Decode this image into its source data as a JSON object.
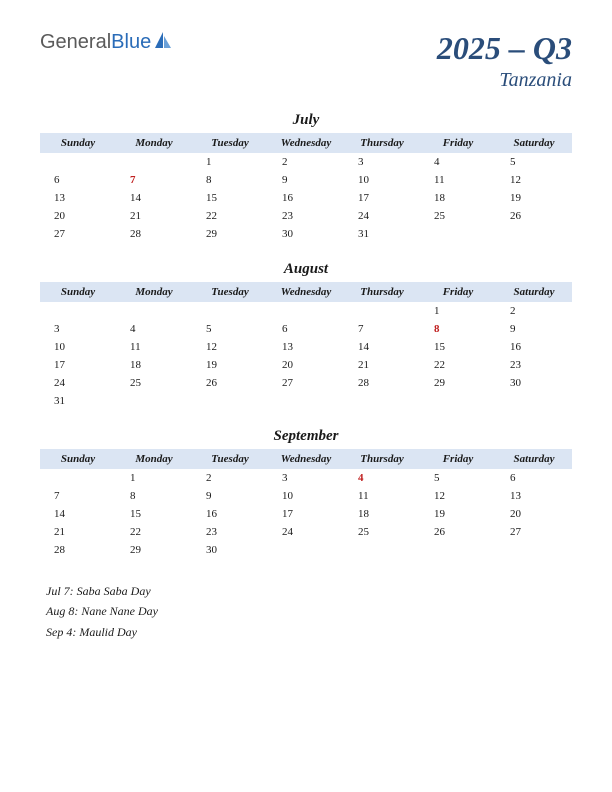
{
  "logo": {
    "part1": "General",
    "part2": "Blue"
  },
  "header": {
    "quarter": "2025 – Q3",
    "country": "Tanzania"
  },
  "colors": {
    "header_band": "#dbe5f3",
    "title_color": "#2a4d7a",
    "holiday_color": "#c02020",
    "logo_gray": "#5a5a5a",
    "logo_blue": "#2a6cb8",
    "background": "#ffffff"
  },
  "day_headers": [
    "Sunday",
    "Monday",
    "Tuesday",
    "Wednesday",
    "Thursday",
    "Friday",
    "Saturday"
  ],
  "months": [
    {
      "name": "July",
      "weeks": [
        [
          "",
          "",
          "1",
          "2",
          "3",
          "4",
          "5"
        ],
        [
          "6",
          "7",
          "8",
          "9",
          "10",
          "11",
          "12"
        ],
        [
          "13",
          "14",
          "15",
          "16",
          "17",
          "18",
          "19"
        ],
        [
          "20",
          "21",
          "22",
          "23",
          "24",
          "25",
          "26"
        ],
        [
          "27",
          "28",
          "29",
          "30",
          "31",
          "",
          ""
        ]
      ],
      "holidays": [
        [
          1,
          1
        ]
      ]
    },
    {
      "name": "August",
      "weeks": [
        [
          "",
          "",
          "",
          "",
          "",
          "1",
          "2"
        ],
        [
          "3",
          "4",
          "5",
          "6",
          "7",
          "8",
          "9"
        ],
        [
          "10",
          "11",
          "12",
          "13",
          "14",
          "15",
          "16"
        ],
        [
          "17",
          "18",
          "19",
          "20",
          "21",
          "22",
          "23"
        ],
        [
          "24",
          "25",
          "26",
          "27",
          "28",
          "29",
          "30"
        ],
        [
          "31",
          "",
          "",
          "",
          "",
          "",
          ""
        ]
      ],
      "holidays": [
        [
          1,
          5
        ]
      ]
    },
    {
      "name": "September",
      "weeks": [
        [
          "",
          "1",
          "2",
          "3",
          "4",
          "5",
          "6"
        ],
        [
          "7",
          "8",
          "9",
          "10",
          "11",
          "12",
          "13"
        ],
        [
          "14",
          "15",
          "16",
          "17",
          "18",
          "19",
          "20"
        ],
        [
          "21",
          "22",
          "23",
          "24",
          "25",
          "26",
          "27"
        ],
        [
          "28",
          "29",
          "30",
          "",
          "",
          "",
          ""
        ]
      ],
      "holidays": [
        [
          0,
          4
        ]
      ]
    }
  ],
  "holiday_list": [
    "Jul 7: Saba Saba Day",
    "Aug 8: Nane Nane Day",
    "Sep 4: Maulid Day"
  ]
}
